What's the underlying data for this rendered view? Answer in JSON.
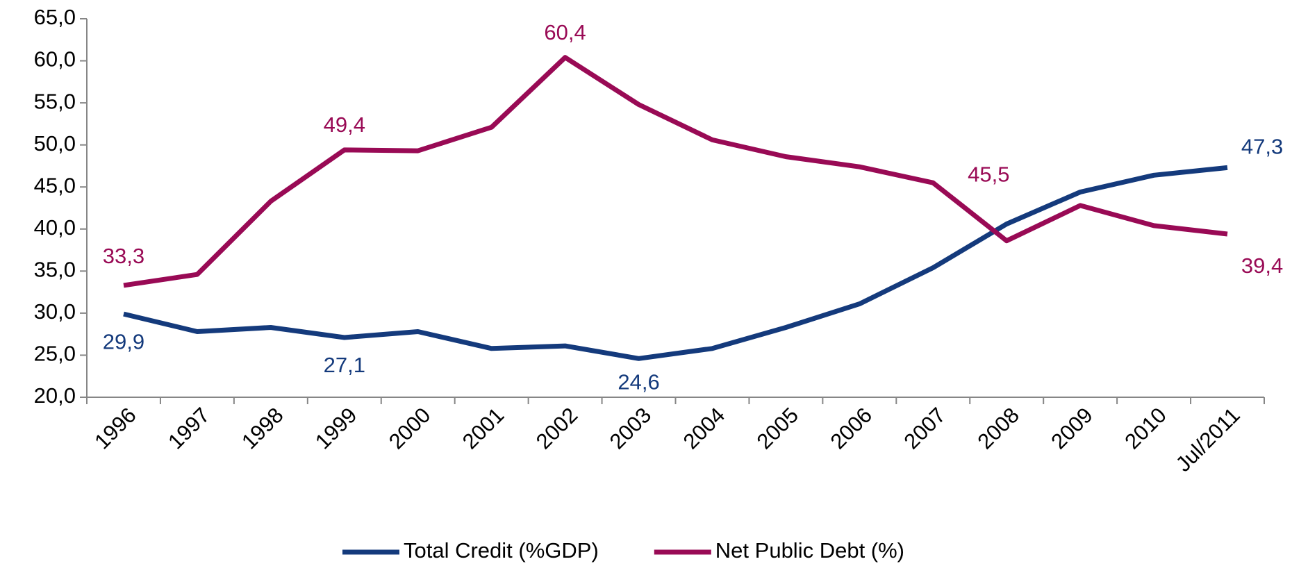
{
  "chart_data": {
    "type": "line",
    "categories": [
      "1996",
      "1997",
      "1998",
      "1999",
      "2000",
      "2001",
      "2002",
      "2003",
      "2004",
      "2005",
      "2006",
      "2007",
      "2008",
      "2009",
      "2010",
      "Jul/2011"
    ],
    "series": [
      {
        "name": "Total Credit (%GDP)",
        "color": "#143a7c",
        "values": [
          29.9,
          27.8,
          28.3,
          27.1,
          27.8,
          25.8,
          26.1,
          24.6,
          25.8,
          28.3,
          31.1,
          35.4,
          40.6,
          44.4,
          46.4,
          47.3
        ],
        "value_labels": [
          "29,9",
          null,
          null,
          "27,1",
          null,
          null,
          null,
          "24,6",
          null,
          null,
          null,
          null,
          null,
          null,
          null,
          "47,3"
        ]
      },
      {
        "name": "Net Public Debt (%)",
        "color": "#990a55",
        "values": [
          33.3,
          34.6,
          43.3,
          49.4,
          49.3,
          52.1,
          60.4,
          54.8,
          50.6,
          48.6,
          47.4,
          45.5,
          38.6,
          42.8,
          40.4,
          39.4
        ],
        "value_labels": [
          "33,3",
          null,
          null,
          "49,4",
          null,
          null,
          "60,4",
          null,
          null,
          null,
          null,
          "45,5",
          null,
          null,
          null,
          "39,4"
        ]
      }
    ],
    "ylim": [
      20,
      65
    ],
    "yticks": [
      {
        "value": 20,
        "label": "20,0"
      },
      {
        "value": 25,
        "label": "25,0"
      },
      {
        "value": 30,
        "label": "30,0"
      },
      {
        "value": 35,
        "label": "35,0"
      },
      {
        "value": 40,
        "label": "40,0"
      },
      {
        "value": 45,
        "label": "45,0"
      },
      {
        "value": 50,
        "label": "50,0"
      },
      {
        "value": 55,
        "label": "55,0"
      },
      {
        "value": 60,
        "label": "60,0"
      },
      {
        "value": 65,
        "label": "65,0"
      }
    ],
    "legend": "bottom"
  }
}
